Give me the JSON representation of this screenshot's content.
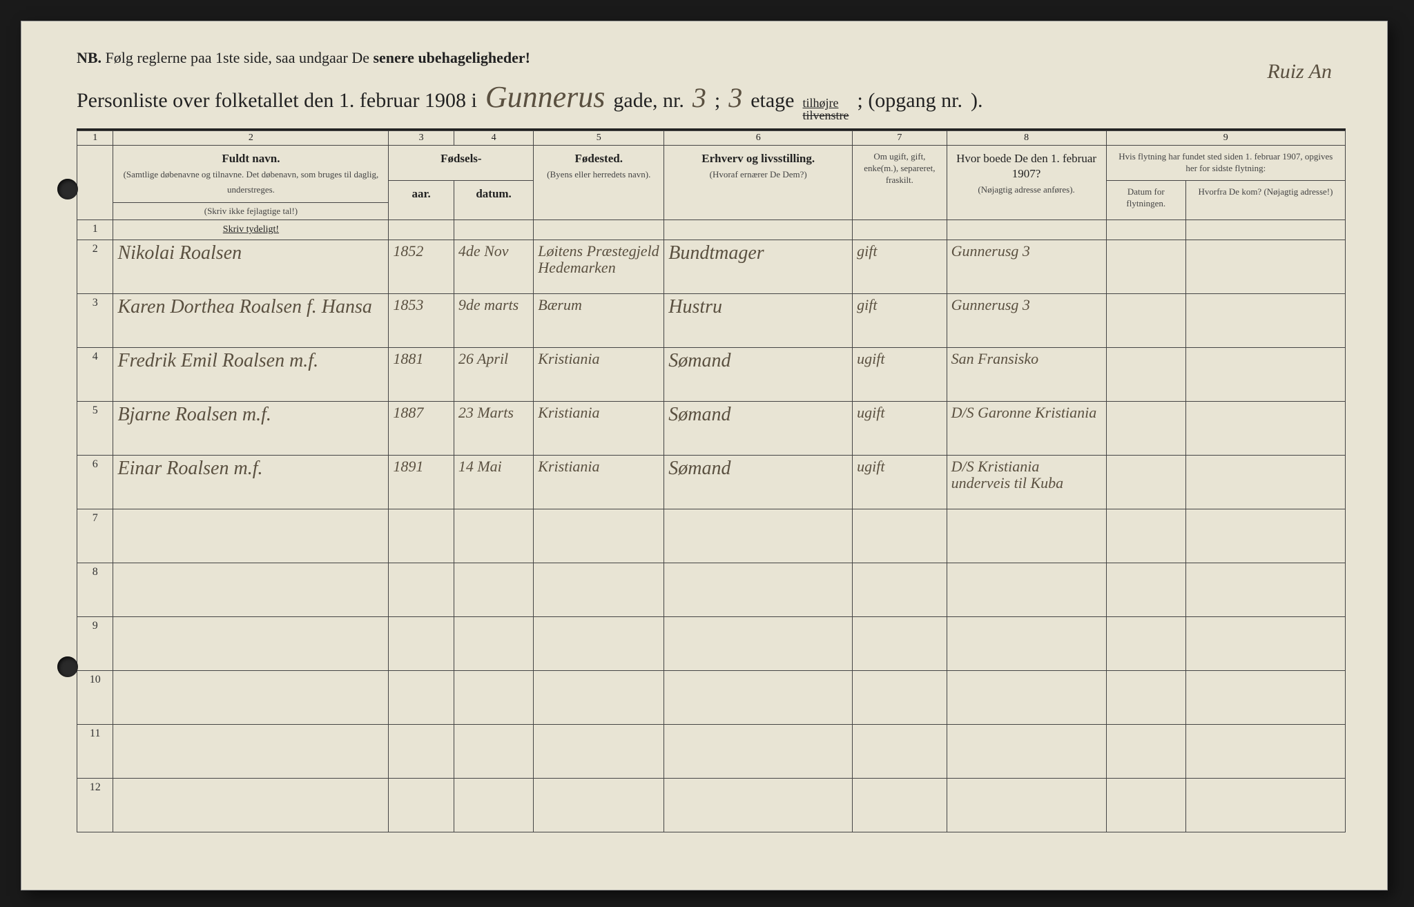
{
  "nb": {
    "prefix": "NB.",
    "text1": "Følg reglerne paa 1ste side, saa undgaar De ",
    "bold": "senere ubehageligheder!"
  },
  "title": {
    "prefix": "Personliste over folketallet den 1. februar 1908 i",
    "street_hand": "Gunnerus",
    "street_suffix": "gade, nr.",
    "house_nr": "3",
    "semicolon": ";",
    "floor": "3",
    "etage": "etage",
    "tilhojre": "tilhøjre",
    "tilvenstre": "tilvenstre",
    "opgang": "; (opgang nr.",
    "closing": ")."
  },
  "corner_note": "Ruiz An",
  "headers": {
    "col_nums": [
      "1",
      "2",
      "3",
      "4",
      "5",
      "6",
      "7",
      "8",
      "9"
    ],
    "fodsel": "Fødsels-",
    "aar": "aar.",
    "datum": "datum.",
    "fuldt_navn": "Fuldt navn.",
    "fuldt_sub": "(Samtlige døbenavne og tilnavne. Det døbenavn, som bruges til daglig, understreges.",
    "skriv_ikke": "(Skriv ikke fejlagtige tal!)",
    "fodested": "Fødested.",
    "fodested_sub": "(Byens eller herredets navn).",
    "erhverv": "Erhverv og livsstilling.",
    "erhverv_sub": "(Hvoraf ernærer De Dem?)",
    "om_ugift": "Om ugift, gift, enke(m.), separeret, fraskilt.",
    "hvor_boede": "Hvor boede De den 1. februar 1907?",
    "hvor_sub": "(Nøjagtig adresse anføres).",
    "flytning": "Hvis flytning har fundet sted siden 1. februar 1907, opgives her for sidste flytning:",
    "datum_flyt": "Datum for flytningen.",
    "hvorfra": "Hvorfra De kom? (Nøjagtig adresse!)",
    "skriv_tydeligt": "Skriv tydeligt!"
  },
  "rows": [
    {
      "n": "1",
      "name": "",
      "year": "",
      "date": "",
      "birthplace": "",
      "occupation": "",
      "marital": "",
      "prev": "",
      "movedate": "",
      "movefrom": ""
    },
    {
      "n": "2",
      "name": "Nikolai Roalsen",
      "year": "1852",
      "date": "4de Nov",
      "birthplace": "Løitens Præstegjeld Hedemarken",
      "occupation": "Bundtmager",
      "marital": "gift",
      "prev": "Gunnerusg 3",
      "movedate": "",
      "movefrom": ""
    },
    {
      "n": "3",
      "name": "Karen Dorthea Roalsen f. Hansa",
      "year": "1853",
      "date": "9de marts",
      "birthplace": "Bærum",
      "occupation": "Hustru",
      "marital": "gift",
      "prev": "Gunnerusg 3",
      "movedate": "",
      "movefrom": ""
    },
    {
      "n": "4",
      "name": "Fredrik Emil Roalsen m.f.",
      "year": "1881",
      "date": "26 April",
      "birthplace": "Kristiania",
      "occupation": "Sømand",
      "marital": "ugift",
      "prev": "San Fransisko",
      "movedate": "",
      "movefrom": ""
    },
    {
      "n": "5",
      "name": "Bjarne Roalsen m.f.",
      "year": "1887",
      "date": "23 Marts",
      "birthplace": "Kristiania",
      "occupation": "Sømand",
      "marital": "ugift",
      "prev": "D/S Garonne Kristiania",
      "movedate": "",
      "movefrom": ""
    },
    {
      "n": "6",
      "name": "Einar Roalsen m.f.",
      "year": "1891",
      "date": "14 Mai",
      "birthplace": "Kristiania",
      "occupation": "Sømand",
      "marital": "ugift",
      "prev": "D/S Kristiania underveis til Kuba",
      "movedate": "",
      "movefrom": ""
    },
    {
      "n": "7",
      "name": "",
      "year": "",
      "date": "",
      "birthplace": "",
      "occupation": "",
      "marital": "",
      "prev": "",
      "movedate": "",
      "movefrom": ""
    },
    {
      "n": "8",
      "name": "",
      "year": "",
      "date": "",
      "birthplace": "",
      "occupation": "",
      "marital": "",
      "prev": "",
      "movedate": "",
      "movefrom": ""
    },
    {
      "n": "9",
      "name": "",
      "year": "",
      "date": "",
      "birthplace": "",
      "occupation": "",
      "marital": "",
      "prev": "",
      "movedate": "",
      "movefrom": ""
    },
    {
      "n": "10",
      "name": "",
      "year": "",
      "date": "",
      "birthplace": "",
      "occupation": "",
      "marital": "",
      "prev": "",
      "movedate": "",
      "movefrom": ""
    },
    {
      "n": "11",
      "name": "",
      "year": "",
      "date": "",
      "birthplace": "",
      "occupation": "",
      "marital": "",
      "prev": "",
      "movedate": "",
      "movefrom": ""
    },
    {
      "n": "12",
      "name": "",
      "year": "",
      "date": "",
      "birthplace": "",
      "occupation": "",
      "marital": "",
      "prev": "",
      "movedate": "",
      "movefrom": ""
    }
  ],
  "colors": {
    "page_bg": "#e8e4d4",
    "ink": "#222222",
    "handwriting": "#5a5040",
    "blue_check": "#3a5a9a"
  }
}
